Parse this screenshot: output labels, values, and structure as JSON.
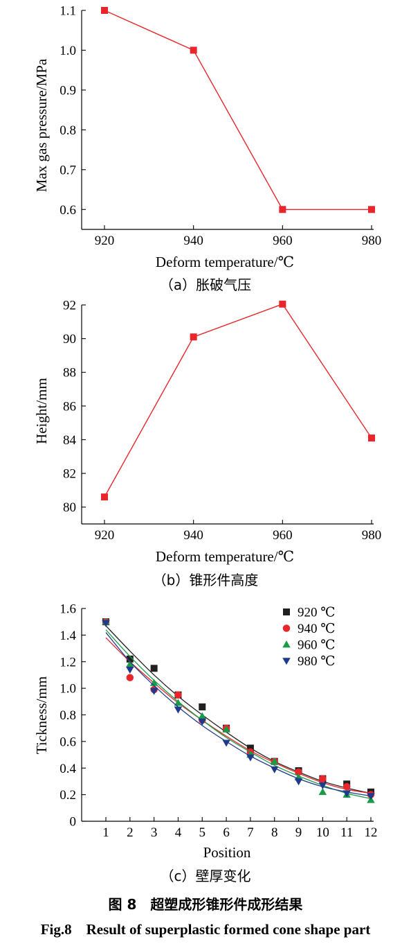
{
  "figure": {
    "caption_cn": "图 8　超塑成形锥形件成形结果",
    "caption_en": "Fig.8　Result of superplastic formed cone shape part"
  },
  "chart_data": [
    {
      "type": "line",
      "caption": "（a）胀破气压",
      "xlabel": "Deform temperature/℃",
      "ylabel": "Max gas pressure/MPa",
      "x": [
        920,
        940,
        960,
        980
      ],
      "xticks": [
        "920",
        "940",
        "960",
        "980"
      ],
      "xlim": [
        915,
        980
      ],
      "ylim": [
        0.55,
        1.1
      ],
      "yticks": [
        "0.6",
        "0.7",
        "0.8",
        "0.9",
        "1.0",
        "1.1"
      ],
      "ytick_values": [
        0.6,
        0.7,
        0.8,
        0.9,
        1.0,
        1.1
      ],
      "series": [
        {
          "values": [
            1.1,
            1.0,
            0.6,
            0.6
          ],
          "color": "#e8262c",
          "marker": "square"
        }
      ]
    },
    {
      "type": "line",
      "caption": "（b）锥形件高度",
      "xlabel": "Deform temperature/℃",
      "ylabel": "Height/mm",
      "x": [
        920,
        940,
        960,
        980
      ],
      "xticks": [
        "920",
        "940",
        "960",
        "980"
      ],
      "xlim": [
        915,
        980
      ],
      "ylim": [
        79,
        92
      ],
      "yticks": [
        "80",
        "82",
        "84",
        "86",
        "88",
        "90",
        "92"
      ],
      "ytick_values": [
        80,
        82,
        84,
        86,
        88,
        90,
        92
      ],
      "series": [
        {
          "values": [
            80.6,
            90.1,
            92.05,
            84.1
          ],
          "color": "#e8262c",
          "marker": "square"
        }
      ]
    },
    {
      "type": "scatter",
      "caption": "（c）壁厚变化",
      "xlabel": "Position",
      "ylabel": "Tickness/mm",
      "x": [
        1,
        2,
        3,
        4,
        5,
        6,
        7,
        8,
        9,
        10,
        11,
        12
      ],
      "xticks": [
        "1",
        "2",
        "3",
        "4",
        "5",
        "6",
        "7",
        "8",
        "9",
        "10",
        "11",
        "12"
      ],
      "xlim": [
        0,
        12
      ],
      "ylim": [
        0,
        1.6
      ],
      "yticks": [
        "0",
        "0.2",
        "0.4",
        "0.6",
        "0.8",
        "1.0",
        "1.2",
        "1.4",
        "1.6"
      ],
      "ytick_values": [
        0,
        0.2,
        0.4,
        0.6,
        0.8,
        1.0,
        1.2,
        1.4,
        1.6
      ],
      "legend_position": "top-right",
      "series": [
        {
          "name": "920 ℃",
          "marker": "square",
          "color": "#231f20",
          "values": [
            1.5,
            1.22,
            1.15,
            0.95,
            0.86,
            0.7,
            0.55,
            0.45,
            0.38,
            0.32,
            0.28,
            0.22
          ],
          "fit": [
            1.47,
            1.28,
            1.1,
            0.94,
            0.8,
            0.67,
            0.55,
            0.45,
            0.37,
            0.3,
            0.25,
            0.21
          ]
        },
        {
          "name": "940 ℃",
          "marker": "circle",
          "color": "#e8262c",
          "values": [
            1.5,
            1.08,
            0.99,
            0.95,
            0.76,
            0.7,
            0.52,
            0.45,
            0.37,
            0.32,
            0.26,
            0.2
          ],
          "fit": [
            1.38,
            1.2,
            1.04,
            0.89,
            0.76,
            0.64,
            0.53,
            0.44,
            0.36,
            0.29,
            0.24,
            0.21
          ]
        },
        {
          "name": "960 ℃",
          "marker": "triangle-up",
          "color": "#1a9b48",
          "values": [
            1.5,
            1.18,
            1.04,
            0.89,
            0.79,
            0.69,
            0.5,
            0.45,
            0.33,
            0.22,
            0.2,
            0.16
          ],
          "fit": [
            1.44,
            1.24,
            1.06,
            0.9,
            0.76,
            0.63,
            0.52,
            0.42,
            0.34,
            0.27,
            0.21,
            0.17
          ]
        },
        {
          "name": "980 ℃",
          "marker": "triangle-down",
          "color": "#1e3a8c",
          "values": [
            1.49,
            1.14,
            0.98,
            0.84,
            0.75,
            0.59,
            0.48,
            0.39,
            0.3,
            0.27,
            0.21,
            0.19
          ],
          "fit": [
            1.42,
            1.2,
            1.02,
            0.86,
            0.72,
            0.6,
            0.49,
            0.4,
            0.32,
            0.26,
            0.22,
            0.19
          ]
        }
      ]
    }
  ]
}
